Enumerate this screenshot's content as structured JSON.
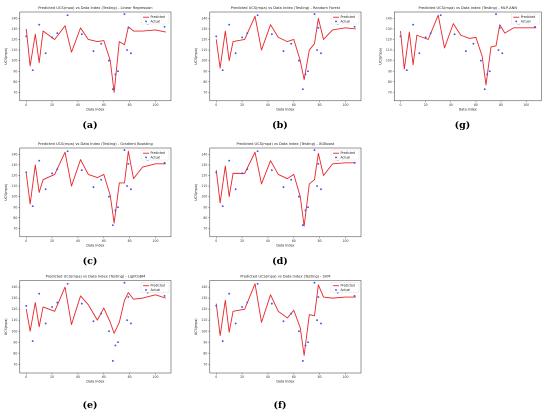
{
  "colors": {
    "predicted": "#e8262a",
    "actual": "#4a55e8",
    "axis": "#333333",
    "background": "#ffffff"
  },
  "chart_data": [
    {
      "type": "line",
      "panel": "(a)",
      "title": "Predicted UCS(mpa) vs Data Index (Testing) - Linear Regression",
      "xlabel": "Data Index",
      "ylabel": "UCS(mpa)",
      "xlim": [
        -5,
        112
      ],
      "ylim": [
        62,
        146
      ],
      "xticks": [
        0,
        20,
        40,
        60,
        80,
        100
      ],
      "yticks": [
        70,
        80,
        90,
        100,
        110,
        120,
        130,
        140
      ],
      "legend_position": "top-right",
      "series": [
        {
          "name": "Predicted",
          "style": "line",
          "x": [
            0,
            3,
            7,
            10,
            13,
            22,
            30,
            35,
            42,
            48,
            55,
            60,
            65,
            68,
            72,
            76,
            79,
            83,
            90,
            100,
            108
          ],
          "y": [
            130,
            95,
            125,
            98,
            128,
            120,
            133,
            108,
            131,
            120,
            118,
            119,
            100,
            70,
            118,
            115,
            132,
            128,
            128,
            129,
            127
          ]
        },
        {
          "name": "Actual",
          "style": "scatter",
          "x": [
            0,
            5,
            10,
            15,
            20,
            24,
            32,
            43,
            52,
            58,
            64,
            67,
            69,
            71,
            76,
            78,
            79,
            81,
            94,
            107
          ],
          "y": [
            123,
            91,
            134,
            107,
            122,
            126,
            143,
            125,
            109,
            116,
            100,
            73,
            87,
            90,
            144,
            110,
            131,
            107,
            135,
            132
          ]
        }
      ]
    },
    {
      "type": "line",
      "panel": "(b)",
      "title": "Predicted UCS(mpa) vs Data Index (Testing) - Random Forest",
      "xlabel": "Data Index",
      "ylabel": "UCS(mpa)",
      "xlim": [
        -5,
        112
      ],
      "ylim": [
        62,
        146
      ],
      "xticks": [
        0,
        20,
        40,
        60,
        80,
        100
      ],
      "yticks": [
        70,
        80,
        90,
        100,
        110,
        120,
        130,
        140
      ],
      "legend_position": "top-right",
      "series": [
        {
          "name": "Predicted",
          "style": "line",
          "x": [
            0,
            3,
            7,
            10,
            13,
            22,
            30,
            35,
            42,
            48,
            55,
            60,
            65,
            68,
            72,
            76,
            79,
            83,
            90,
            100,
            108
          ],
          "y": [
            120,
            93,
            128,
            100,
            118,
            120,
            142,
            110,
            134,
            122,
            118,
            120,
            100,
            82,
            110,
            116,
            140,
            120,
            129,
            131,
            130
          ]
        },
        {
          "name": "Actual",
          "style": "scatter",
          "x": [
            0,
            5,
            10,
            15,
            20,
            24,
            32,
            43,
            52,
            58,
            64,
            67,
            69,
            71,
            76,
            78,
            79,
            81,
            94,
            107
          ],
          "y": [
            123,
            91,
            134,
            107,
            122,
            126,
            143,
            125,
            109,
            116,
            100,
            73,
            87,
            90,
            144,
            110,
            131,
            107,
            135,
            132
          ]
        }
      ]
    },
    {
      "type": "line",
      "panel": "(g)",
      "title": "Predicted UCS(mpa) vs Data Index (Testing) - MLP-ANN",
      "xlabel": "Data Index",
      "ylabel": "UCS(mpa)",
      "xlim": [
        -5,
        112
      ],
      "ylim": [
        62,
        146
      ],
      "xticks": [
        0,
        20,
        40,
        60,
        80,
        100
      ],
      "yticks": [
        70,
        80,
        90,
        100,
        110,
        120,
        130,
        140
      ],
      "legend_position": "top-right",
      "series": [
        {
          "name": "Predicted",
          "style": "line",
          "x": [
            0,
            3,
            7,
            10,
            13,
            22,
            30,
            35,
            42,
            48,
            55,
            60,
            65,
            68,
            72,
            76,
            79,
            83,
            90,
            100,
            108
          ],
          "y": [
            128,
            92,
            127,
            96,
            124,
            120,
            143,
            112,
            135,
            124,
            121,
            122,
            104,
            77,
            113,
            114,
            134,
            126,
            131,
            131,
            131
          ]
        },
        {
          "name": "Actual",
          "style": "scatter",
          "x": [
            0,
            5,
            10,
            15,
            20,
            24,
            32,
            43,
            52,
            58,
            64,
            67,
            69,
            71,
            76,
            78,
            79,
            81,
            94,
            107
          ],
          "y": [
            123,
            91,
            134,
            107,
            122,
            126,
            143,
            125,
            109,
            116,
            100,
            73,
            87,
            90,
            144,
            110,
            131,
            107,
            135,
            132
          ]
        }
      ]
    },
    {
      "type": "line",
      "panel": "(c)",
      "title": "Predicted UCS(mpa) vs Data Index (Testing) - Gradient Boosting",
      "xlabel": "Data Index",
      "ylabel": "UCS(mpa)",
      "xlim": [
        -5,
        112
      ],
      "ylim": [
        62,
        146
      ],
      "xticks": [
        0,
        20,
        40,
        60,
        80,
        100
      ],
      "yticks": [
        70,
        80,
        90,
        100,
        110,
        120,
        130,
        140
      ],
      "legend_position": "top-right",
      "series": [
        {
          "name": "Predicted",
          "style": "line",
          "x": [
            0,
            3,
            7,
            10,
            13,
            22,
            30,
            35,
            42,
            48,
            55,
            60,
            65,
            68,
            72,
            76,
            79,
            83,
            90,
            100,
            108
          ],
          "y": [
            122,
            93,
            130,
            104,
            116,
            121,
            142,
            110,
            135,
            121,
            118,
            121,
            101,
            75,
            113,
            113,
            143,
            117,
            128,
            131,
            131
          ]
        },
        {
          "name": "Actual",
          "style": "scatter",
          "x": [
            0,
            5,
            10,
            15,
            20,
            24,
            32,
            43,
            52,
            58,
            64,
            67,
            69,
            71,
            76,
            78,
            79,
            81,
            94,
            107
          ],
          "y": [
            123,
            91,
            134,
            107,
            122,
            126,
            143,
            125,
            109,
            116,
            100,
            73,
            87,
            90,
            144,
            110,
            131,
            107,
            135,
            132
          ]
        }
      ]
    },
    {
      "type": "line",
      "panel": "(d)",
      "title": "Predicted UCS(mpa) vs Data Index (Testing) - XGBoost",
      "xlabel": "Data Index",
      "ylabel": "UCS(mpa)",
      "xlim": [
        -5,
        112
      ],
      "ylim": [
        62,
        146
      ],
      "xticks": [
        0,
        20,
        40,
        60,
        80,
        100
      ],
      "yticks": [
        70,
        80,
        90,
        100,
        110,
        120,
        130,
        140
      ],
      "legend_position": "top-right",
      "series": [
        {
          "name": "Predicted",
          "style": "line",
          "x": [
            0,
            3,
            7,
            10,
            13,
            22,
            30,
            35,
            42,
            48,
            55,
            60,
            65,
            68,
            72,
            76,
            79,
            83,
            90,
            100,
            108
          ],
          "y": [
            125,
            94,
            129,
            100,
            122,
            122,
            142,
            112,
            134,
            121,
            117,
            121,
            100,
            72,
            112,
            116,
            141,
            120,
            131,
            132,
            132
          ]
        },
        {
          "name": "Actual",
          "style": "scatter",
          "x": [
            0,
            5,
            10,
            15,
            20,
            24,
            32,
            43,
            52,
            58,
            64,
            67,
            69,
            71,
            76,
            78,
            79,
            81,
            94,
            107
          ],
          "y": [
            123,
            91,
            134,
            107,
            122,
            126,
            143,
            125,
            109,
            116,
            100,
            73,
            87,
            90,
            144,
            110,
            131,
            107,
            135,
            132
          ]
        }
      ]
    },
    {
      "type": "line",
      "panel": "(e)",
      "title": "Predicted UCS(mpa) vs Data Index (Testing) - LightGBM",
      "xlabel": "Data Index",
      "ylabel": "UCS(mpa)",
      "xlim": [
        -5,
        112
      ],
      "ylim": [
        62,
        146
      ],
      "xticks": [
        0,
        20,
        40,
        60,
        80,
        100
      ],
      "yticks": [
        70,
        80,
        90,
        100,
        110,
        120,
        130,
        140
      ],
      "legend_position": "top-right",
      "series": [
        {
          "name": "Predicted",
          "style": "line",
          "x": [
            0,
            3,
            7,
            10,
            13,
            22,
            30,
            35,
            42,
            48,
            55,
            60,
            65,
            68,
            72,
            76,
            79,
            83,
            90,
            100,
            108
          ],
          "y": [
            120,
            100,
            126,
            104,
            122,
            118,
            140,
            106,
            132,
            124,
            110,
            121,
            108,
            98,
            108,
            128,
            135,
            129,
            130,
            133,
            130
          ]
        },
        {
          "name": "Actual",
          "style": "scatter",
          "x": [
            0,
            5,
            10,
            15,
            20,
            24,
            32,
            43,
            52,
            58,
            64,
            67,
            69,
            71,
            76,
            78,
            79,
            81,
            94,
            107
          ],
          "y": [
            123,
            91,
            134,
            107,
            122,
            126,
            143,
            125,
            109,
            116,
            100,
            73,
            87,
            90,
            144,
            110,
            131,
            107,
            135,
            132
          ]
        }
      ]
    },
    {
      "type": "line",
      "panel": "(f)",
      "title": "Predicted UCS(mpa) vs Data Index (Testing) - SVM",
      "xlabel": "Data Index",
      "ylabel": "UCS(mpa)",
      "xlim": [
        -5,
        112
      ],
      "ylim": [
        62,
        146
      ],
      "xticks": [
        0,
        20,
        40,
        60,
        80,
        100
      ],
      "yticks": [
        70,
        80,
        90,
        100,
        110,
        120,
        130,
        140
      ],
      "legend_position": "top-right",
      "series": [
        {
          "name": "Predicted",
          "style": "line",
          "x": [
            0,
            3,
            7,
            10,
            13,
            22,
            30,
            35,
            42,
            48,
            55,
            60,
            65,
            68,
            72,
            76,
            79,
            83,
            90,
            100,
            108
          ],
          "y": [
            125,
            96,
            128,
            99,
            118,
            120,
            143,
            108,
            133,
            118,
            112,
            119,
            103,
            78,
            115,
            114,
            142,
            131,
            130,
            131,
            131
          ]
        },
        {
          "name": "Actual",
          "style": "scatter",
          "x": [
            0,
            5,
            10,
            15,
            20,
            24,
            32,
            43,
            52,
            58,
            64,
            67,
            69,
            71,
            76,
            78,
            79,
            81,
            94,
            107
          ],
          "y": [
            123,
            91,
            134,
            107,
            122,
            126,
            143,
            125,
            109,
            116,
            100,
            73,
            87,
            90,
            144,
            110,
            131,
            107,
            135,
            132
          ]
        }
      ]
    }
  ]
}
